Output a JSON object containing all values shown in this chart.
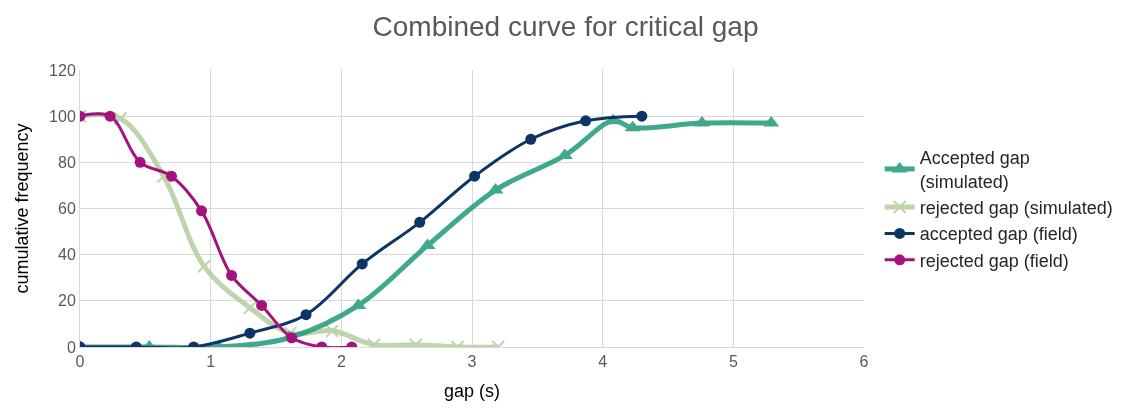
{
  "chart_data": {
    "type": "line",
    "title": "Combined curve for critical gap",
    "xlabel": "gap (s)",
    "ylabel": "cumulative frequency",
    "series": [
      {
        "name": "Accepted gap\n(simulated)",
        "color": "#1e9a7a",
        "marker": "triangle",
        "x": [
          0,
          0.53,
          1.06,
          1.6,
          2.13,
          2.66,
          3.18,
          3.71,
          4.08,
          4.23,
          4.76,
          5.29
        ],
        "values": [
          0,
          0,
          0,
          4,
          18,
          44,
          68,
          83,
          98,
          95,
          97,
          97
        ]
      },
      {
        "name": "rejected gap (simulated)",
        "color": "#b5cc9f",
        "marker": "cross",
        "x": [
          0,
          0.31,
          0.64,
          0.95,
          1.3,
          1.61,
          1.93,
          2.25,
          2.57,
          2.89,
          3.2
        ],
        "values": [
          100,
          99,
          74,
          35,
          17,
          6,
          7,
          1,
          1,
          0,
          0
        ]
      },
      {
        "name": "accepted gap (field)",
        "color": "#0d3466",
        "marker": "circle",
        "x": [
          0,
          0.43,
          0.87,
          1.3,
          1.73,
          2.16,
          2.6,
          3.02,
          3.45,
          3.87,
          4.3
        ],
        "values": [
          0,
          0,
          0,
          6,
          14,
          36,
          54,
          74,
          90,
          98,
          100
        ]
      },
      {
        "name": "rejected gap (field)",
        "color": "#a3127f",
        "marker": "circle",
        "x": [
          0,
          0.23,
          0.46,
          0.7,
          0.93,
          1.16,
          1.39,
          1.62,
          1.85,
          2.08
        ],
        "values": [
          100,
          100,
          80,
          74,
          59,
          31,
          18,
          4,
          0,
          0
        ]
      }
    ],
    "xlim": [
      0,
      6
    ],
    "xticks": [
      0,
      1,
      2,
      3,
      4,
      5,
      6
    ],
    "ylim": [
      0,
      120
    ],
    "yticks": [
      0,
      20,
      40,
      60,
      80,
      100,
      120
    ],
    "grid": true,
    "legend": "right"
  }
}
